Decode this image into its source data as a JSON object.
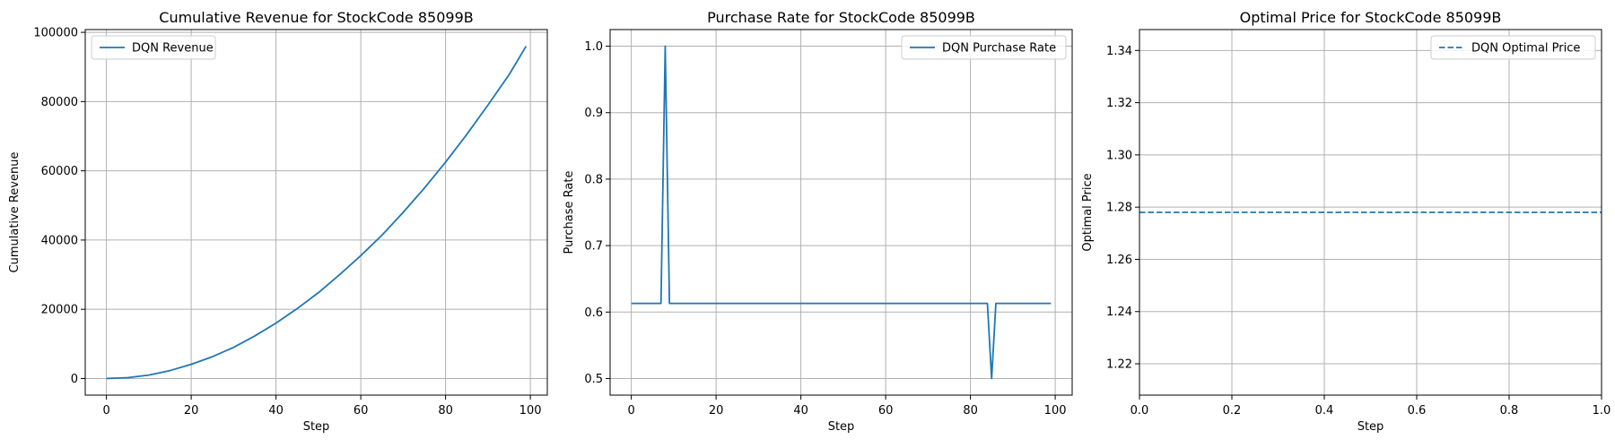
{
  "colors": {
    "series": "#1f77b4",
    "grid": "#b0b0b0",
    "legend_border": "#cccccc"
  },
  "chart_data": [
    {
      "type": "line",
      "title": "Cumulative Revenue for StockCode 85099B",
      "xlabel": "Step",
      "ylabel": "Cumulative Revenue",
      "xlim": [
        -5,
        104
      ],
      "ylim": [
        -4800,
        100800
      ],
      "xticks": [
        0,
        20,
        40,
        60,
        80,
        100
      ],
      "yticks": [
        0,
        20000,
        40000,
        60000,
        80000,
        100000
      ],
      "grid": true,
      "legend": "upper-left",
      "series": [
        {
          "name": "DQN Revenue",
          "style": "solid",
          "x": [
            0,
            5,
            10,
            15,
            20,
            25,
            30,
            35,
            40,
            45,
            50,
            55,
            60,
            65,
            70,
            75,
            80,
            85,
            90,
            95,
            99
          ],
          "y": [
            0,
            240,
            1000,
            2300,
            4100,
            6300,
            9000,
            12300,
            16000,
            20200,
            24800,
            30000,
            35500,
            41400,
            48000,
            55000,
            62500,
            70500,
            79000,
            87800,
            96000
          ]
        }
      ]
    },
    {
      "type": "line",
      "title": "Purchase Rate for StockCode 85099B",
      "xlabel": "Step",
      "ylabel": "Purchase Rate",
      "xlim": [
        -5,
        104
      ],
      "ylim": [
        0.475,
        1.025
      ],
      "xticks": [
        0,
        20,
        40,
        60,
        80,
        100
      ],
      "yticks": [
        0.5,
        0.6,
        0.7,
        0.8,
        0.9,
        1.0
      ],
      "grid": true,
      "legend": "upper-right",
      "series": [
        {
          "name": "DQN Purchase Rate",
          "style": "solid",
          "x": [
            0,
            7,
            8,
            9,
            84,
            85,
            86,
            99
          ],
          "y": [
            0.613,
            0.613,
            1.0,
            0.613,
            0.613,
            0.5,
            0.613,
            0.613
          ]
        }
      ]
    },
    {
      "type": "line",
      "title": "Optimal Price for StockCode 85099B",
      "xlabel": "Step",
      "ylabel": "Optimal Price",
      "xlim": [
        0,
        1
      ],
      "ylim": [
        1.208,
        1.348
      ],
      "xticks": [
        0.0,
        0.2,
        0.4,
        0.6,
        0.8,
        1.0
      ],
      "yticks": [
        1.22,
        1.24,
        1.26,
        1.28,
        1.3,
        1.32,
        1.34
      ],
      "grid": true,
      "legend": "upper-right",
      "series": [
        {
          "name": "DQN Optimal Price",
          "style": "dashed",
          "x": [
            0,
            1
          ],
          "y": [
            1.278,
            1.278
          ]
        }
      ]
    }
  ]
}
